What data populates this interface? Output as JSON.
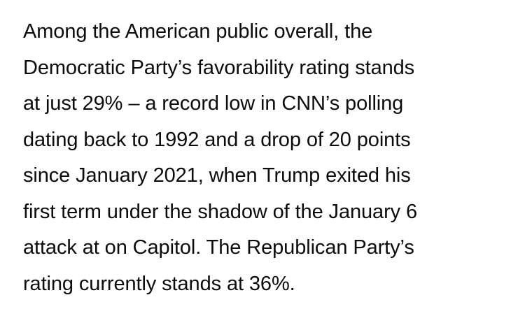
{
  "article": {
    "lines": [
      "Among the American public overall, the",
      "Democratic Party’s favorability rating stands",
      "at just 29% – a record low in CNN’s polling",
      "dating back to 1992 and a drop of 20 points",
      "since January 2021, when Trump exited his",
      "first term under the shadow of the January 6",
      "attack at on Capitol. The Republican Party’s",
      "rating currently stands at 36%."
    ]
  }
}
